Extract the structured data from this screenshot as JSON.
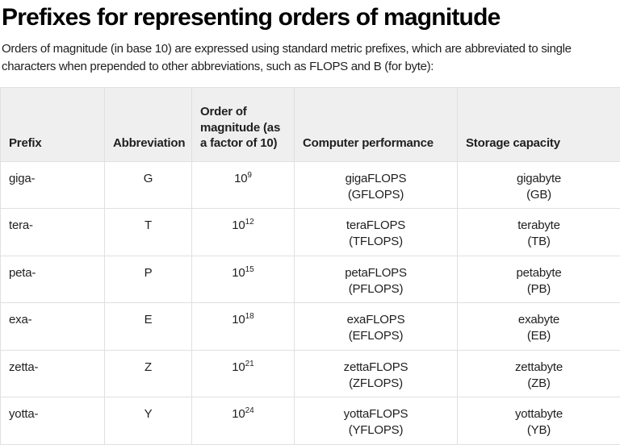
{
  "page": {
    "title": "Prefixes for representing orders of magnitude",
    "description": "Orders of magnitude (in base 10) are expressed using standard metric prefixes, which are abbreviated to single characters when prepended to other abbreviations, such as FLOPS and B (for byte):"
  },
  "table": {
    "columns": [
      "Prefix",
      "Abbreviation",
      "Order of magnitude (as a factor of 10)",
      "Computer performance",
      "Storage capacity"
    ],
    "rows": [
      {
        "prefix": "giga-",
        "abbreviation": "G",
        "magnitude_base": "10",
        "magnitude_exp": "9",
        "performance_name": "gigaFLOPS",
        "performance_abbr": "(GFLOPS)",
        "storage_name": "gigabyte",
        "storage_abbr": "(GB)"
      },
      {
        "prefix": "tera-",
        "abbreviation": "T",
        "magnitude_base": "10",
        "magnitude_exp": "12",
        "performance_name": "teraFLOPS",
        "performance_abbr": "(TFLOPS)",
        "storage_name": "terabyte",
        "storage_abbr": "(TB)"
      },
      {
        "prefix": "peta-",
        "abbreviation": "P",
        "magnitude_base": "10",
        "magnitude_exp": "15",
        "performance_name": "petaFLOPS",
        "performance_abbr": "(PFLOPS)",
        "storage_name": "petabyte",
        "storage_abbr": "(PB)"
      },
      {
        "prefix": "exa-",
        "abbreviation": "E",
        "magnitude_base": "10",
        "magnitude_exp": "18",
        "performance_name": "exaFLOPS",
        "performance_abbr": "(EFLOPS)",
        "storage_name": "exabyte",
        "storage_abbr": "(EB)"
      },
      {
        "prefix": "zetta-",
        "abbreviation": "Z",
        "magnitude_base": "10",
        "magnitude_exp": "21",
        "performance_name": "zettaFLOPS",
        "performance_abbr": "(ZFLOPS)",
        "storage_name": "zettabyte",
        "storage_abbr": "(ZB)"
      },
      {
        "prefix": "yotta-",
        "abbreviation": "Y",
        "magnitude_base": "10",
        "magnitude_exp": "24",
        "performance_name": "yottaFLOPS",
        "performance_abbr": "(YFLOPS)",
        "storage_name": "yottabyte",
        "storage_abbr": "(YB)"
      }
    ]
  },
  "colors": {
    "header_background": "#efefef",
    "table_border": "#e0e0e0",
    "text": "#1f1f1f",
    "title_text": "#000000",
    "page_background": "#ffffff"
  }
}
